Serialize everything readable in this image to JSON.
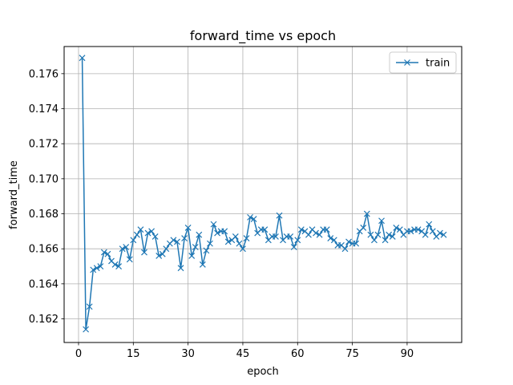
{
  "chart_data": {
    "type": "line",
    "title": "forward_time vs epoch",
    "xlabel": "epoch",
    "ylabel": "forward_time",
    "xlim": [
      -3.95,
      104.95
    ],
    "ylim": [
      0.16065,
      0.17755
    ],
    "x_ticks": [
      0,
      15,
      30,
      45,
      60,
      75,
      90
    ],
    "y_ticks": [
      0.162,
      0.164,
      0.166,
      0.168,
      0.17,
      0.172,
      0.174,
      0.176
    ],
    "y_tick_labels": [
      "0.162",
      "0.164",
      "0.166",
      "0.168",
      "0.170",
      "0.172",
      "0.174",
      "0.176"
    ],
    "grid": true,
    "legend_position": "top-right",
    "series": [
      {
        "name": "train",
        "color": "#1f77b4",
        "marker": "x",
        "x": [
          1,
          2,
          3,
          4,
          5,
          6,
          7,
          8,
          9,
          10,
          11,
          12,
          13,
          14,
          15,
          16,
          17,
          18,
          19,
          20,
          21,
          22,
          23,
          24,
          25,
          26,
          27,
          28,
          29,
          30,
          31,
          32,
          33,
          34,
          35,
          36,
          37,
          38,
          39,
          40,
          41,
          42,
          43,
          44,
          45,
          46,
          47,
          48,
          49,
          50,
          51,
          52,
          53,
          54,
          55,
          56,
          57,
          58,
          59,
          60,
          61,
          62,
          63,
          64,
          65,
          66,
          67,
          68,
          69,
          70,
          71,
          72,
          73,
          74,
          75,
          76,
          77,
          78,
          79,
          80,
          81,
          82,
          83,
          84,
          85,
          86,
          87,
          88,
          89,
          90,
          91,
          92,
          93,
          94,
          95,
          96,
          97,
          98,
          99,
          100
        ],
        "y": [
          0.1769,
          0.1614,
          0.1627,
          0.1648,
          0.1649,
          0.165,
          0.1658,
          0.1657,
          0.1653,
          0.1651,
          0.165,
          0.166,
          0.1661,
          0.1654,
          0.1665,
          0.1668,
          0.1671,
          0.1658,
          0.1669,
          0.167,
          0.1667,
          0.1656,
          0.1657,
          0.166,
          0.1663,
          0.1665,
          0.1664,
          0.1649,
          0.1666,
          0.1672,
          0.1656,
          0.1661,
          0.1668,
          0.1651,
          0.1659,
          0.1663,
          0.1674,
          0.1669,
          0.167,
          0.167,
          0.1664,
          0.1665,
          0.1667,
          0.1663,
          0.166,
          0.1666,
          0.1678,
          0.1677,
          0.1669,
          0.1671,
          0.1671,
          0.1665,
          0.1667,
          0.1667,
          0.1679,
          0.1665,
          0.1667,
          0.1667,
          0.1661,
          0.1665,
          0.1671,
          0.167,
          0.1668,
          0.1671,
          0.1669,
          0.1668,
          0.1671,
          0.1671,
          0.1666,
          0.1665,
          0.1662,
          0.1662,
          0.166,
          0.1664,
          0.1663,
          0.1663,
          0.167,
          0.1672,
          0.168,
          0.1668,
          0.1665,
          0.1668,
          0.1676,
          0.1665,
          0.1668,
          0.1667,
          0.1672,
          0.1671,
          0.1668,
          0.167,
          0.167,
          0.1671,
          0.1671,
          0.167,
          0.1668,
          0.1674,
          0.167,
          0.1667,
          0.1669,
          0.1668
        ]
      }
    ]
  }
}
